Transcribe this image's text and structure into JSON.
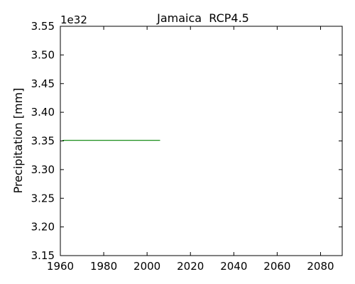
{
  "chart_data": {
    "type": "line",
    "title": "Jamaica  RCP4.5",
    "xlabel": "",
    "ylabel": "Precipitation [mm]",
    "y_offset_label": "1e32",
    "xlim": [
      1960,
      2090
    ],
    "ylim": [
      3.15,
      3.55
    ],
    "x_ticks": [
      1960,
      1980,
      2000,
      2020,
      2040,
      2060,
      2080
    ],
    "y_ticks": [
      3.15,
      3.2,
      3.25,
      3.3,
      3.35,
      3.4,
      3.45,
      3.5,
      3.55
    ],
    "x_tick_labels": [
      "1960",
      "1980",
      "2000",
      "2020",
      "2040",
      "2060",
      "2080"
    ],
    "y_tick_labels": [
      "3.15",
      "3.20",
      "3.25",
      "3.30",
      "3.35",
      "3.40",
      "3.45",
      "3.50",
      "3.55"
    ],
    "grid": false,
    "series": [
      {
        "color": "#008000",
        "x": [
          1961,
          2006
        ],
        "y": [
          3.351,
          3.351
        ]
      }
    ]
  }
}
